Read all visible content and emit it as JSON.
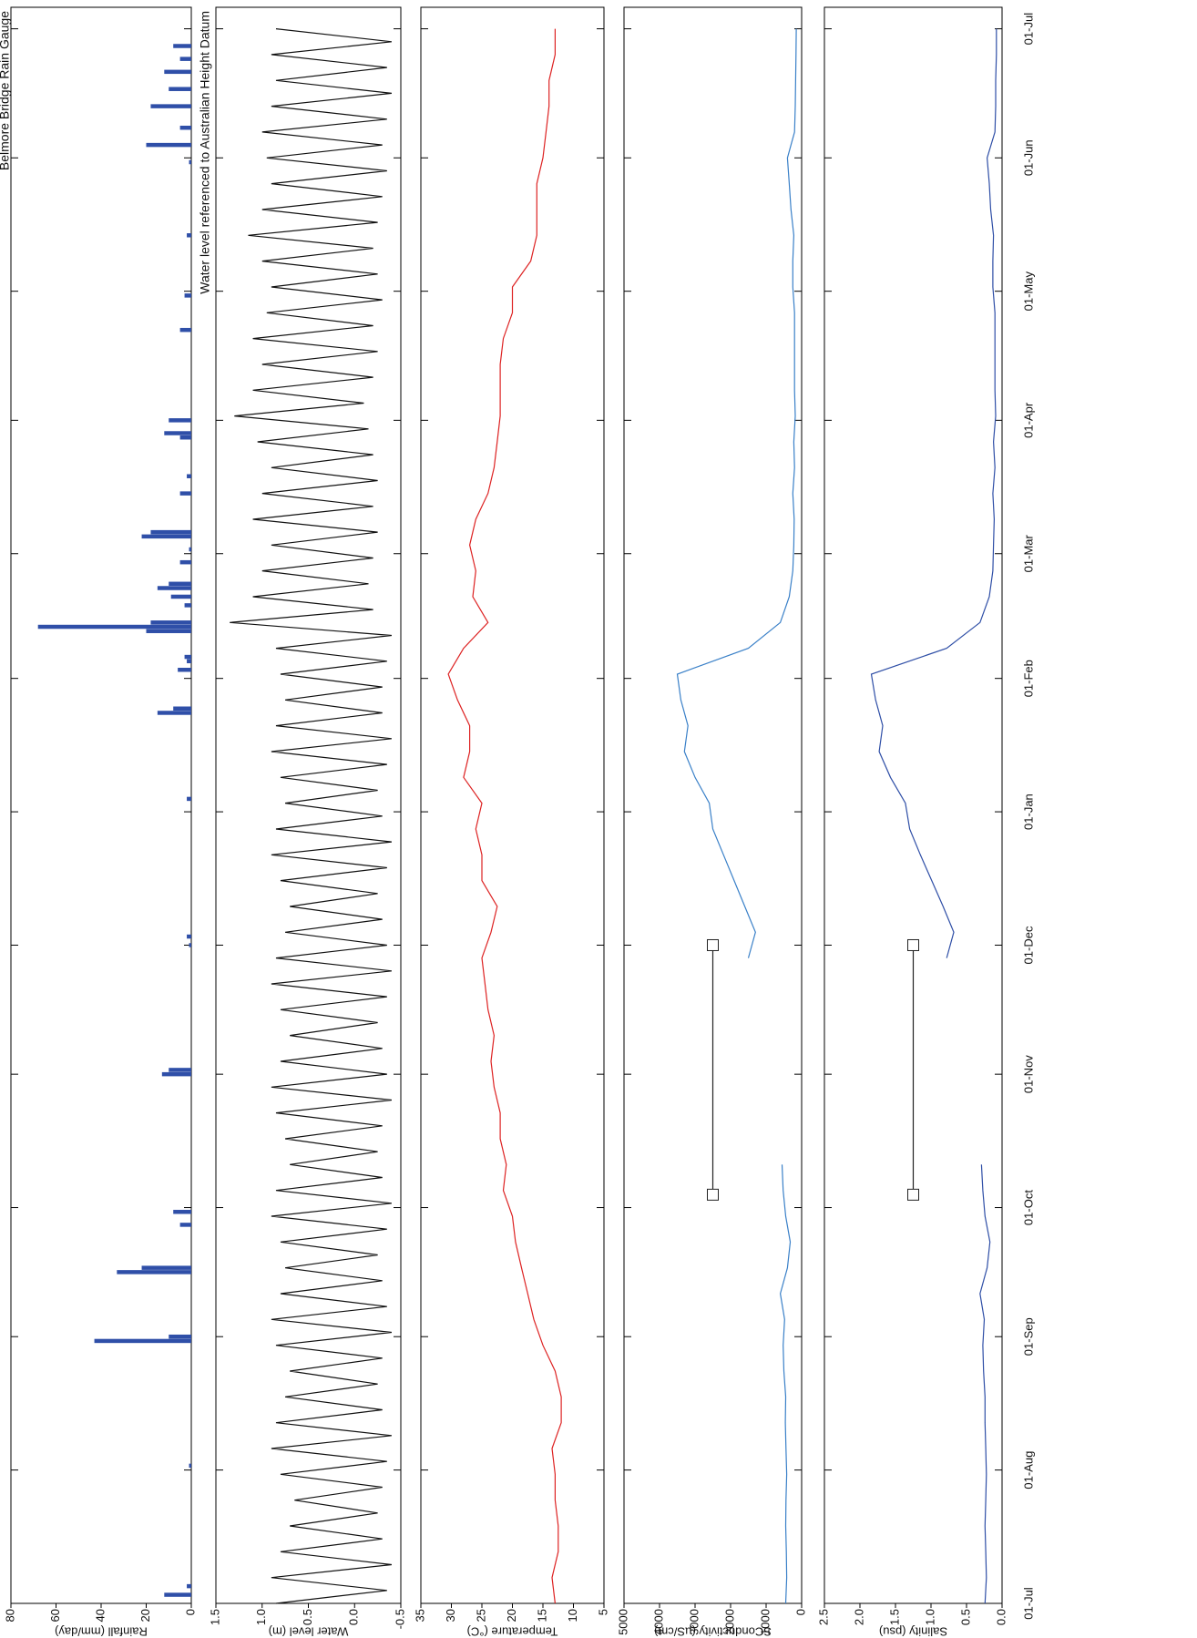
{
  "chart_data": [
    {
      "type": "bar",
      "ylabel": "Rainfall (mm/day)",
      "annotation": "Belmore Bridge Rain Gauge",
      "color": "#2f4fa8",
      "ylim": [
        0,
        80
      ],
      "yticks": [
        0,
        20,
        40,
        60,
        80
      ],
      "x": [
        2,
        4,
        32,
        61,
        62,
        77,
        78,
        88,
        91,
        123,
        124,
        153,
        155,
        187,
        207,
        208,
        217,
        219,
        220,
        226,
        227,
        228,
        232,
        234,
        236,
        237,
        242,
        245,
        248,
        249,
        258,
        262,
        271,
        272,
        275,
        296,
        304,
        318,
        335,
        339,
        343,
        348,
        352,
        356,
        359,
        362
      ],
      "values": [
        12,
        2,
        1,
        43,
        10,
        33,
        22,
        5,
        8,
        13,
        10,
        1,
        2,
        2,
        15,
        8,
        6,
        2,
        3,
        20,
        68,
        18,
        3,
        9,
        15,
        10,
        5,
        1,
        22,
        18,
        5,
        2,
        5,
        12,
        10,
        5,
        3,
        2,
        1,
        20,
        5,
        18,
        10,
        12,
        5,
        8
      ]
    },
    {
      "type": "line",
      "ylabel": "Water level (m)",
      "annotation": "Water level referenced to Australian Height Datum",
      "ylim": [
        -0.5,
        1.5
      ],
      "yticks": [
        {
          "value": -0.5,
          "label": "-0.5"
        },
        {
          "value": 0,
          "label": "0.0"
        },
        {
          "value": 0.5,
          "label": "0.5"
        },
        {
          "value": 1,
          "label": "1.0"
        },
        {
          "value": 1.5,
          "label": "1.5"
        }
      ],
      "x": [
        0,
        3,
        6,
        9,
        12,
        15,
        18,
        21,
        24,
        27,
        30,
        33,
        36,
        39,
        42,
        45,
        48,
        51,
        54,
        57,
        60,
        63,
        66,
        69,
        72,
        75,
        78,
        81,
        84,
        87,
        90,
        93,
        96,
        99,
        102,
        105,
        108,
        111,
        114,
        117,
        120,
        123,
        126,
        129,
        132,
        135,
        138,
        141,
        144,
        147,
        150,
        153,
        156,
        159,
        162,
        165,
        168,
        171,
        174,
        177,
        180,
        183,
        186,
        189,
        192,
        195,
        198,
        201,
        204,
        207,
        210,
        213,
        216,
        219,
        222,
        225,
        228,
        231,
        234,
        237,
        240,
        243,
        246,
        249,
        252,
        255,
        258,
        261,
        264,
        267,
        270,
        273,
        276,
        279,
        282,
        285,
        288,
        291,
        294,
        297,
        300,
        303,
        306,
        309,
        312,
        315,
        318,
        321,
        324,
        327,
        330,
        333,
        336,
        339,
        342,
        345,
        348,
        351,
        354,
        357,
        360,
        363,
        366
      ],
      "series": [
        {
          "color": "#111111",
          "values": [
            0.85,
            -0.35,
            0.9,
            -0.4,
            0.8,
            -0.3,
            0.7,
            -0.25,
            0.65,
            -0.3,
            0.8,
            -0.35,
            0.9,
            -0.4,
            0.85,
            -0.3,
            0.75,
            -0.25,
            0.7,
            -0.3,
            0.85,
            -0.4,
            0.9,
            -0.35,
            0.8,
            -0.3,
            0.75,
            -0.25,
            0.8,
            -0.35,
            0.9,
            -0.4,
            0.85,
            -0.3,
            0.7,
            -0.25,
            0.75,
            -0.3,
            0.85,
            -0.4,
            0.9,
            -0.35,
            0.8,
            -0.3,
            0.7,
            -0.25,
            0.8,
            -0.35,
            0.9,
            -0.4,
            0.85,
            -0.35,
            0.75,
            -0.3,
            0.7,
            -0.25,
            0.8,
            -0.35,
            0.9,
            -0.4,
            0.85,
            -0.3,
            0.75,
            -0.25,
            0.8,
            -0.35,
            0.9,
            -0.4,
            0.85,
            -0.3,
            0.75,
            -0.3,
            0.8,
            -0.35,
            0.85,
            -0.4,
            1.35,
            -0.2,
            1.1,
            -0.15,
            1.0,
            -0.2,
            0.9,
            -0.25,
            1.1,
            -0.2,
            1.0,
            -0.25,
            0.9,
            -0.2,
            1.05,
            -0.15,
            1.3,
            -0.1,
            1.1,
            -0.2,
            1.0,
            -0.25,
            1.1,
            -0.2,
            0.95,
            -0.3,
            0.9,
            -0.25,
            1.0,
            -0.2,
            1.15,
            -0.25,
            1.0,
            -0.3,
            0.9,
            -0.35,
            0.95,
            -0.3,
            1.0,
            -0.35,
            0.9,
            -0.4,
            0.85,
            -0.35,
            0.9,
            -0.4,
            0.85
          ]
        }
      ]
    },
    {
      "type": "line",
      "ylabel": "Temperature (°C)",
      "ylim": [
        5,
        35
      ],
      "yticks": [
        5,
        10,
        15,
        20,
        25,
        30,
        35
      ],
      "x": [
        0,
        6,
        12,
        18,
        24,
        30,
        36,
        42,
        48,
        54,
        60,
        66,
        72,
        78,
        84,
        90,
        96,
        102,
        108,
        114,
        120,
        126,
        132,
        138,
        144,
        150,
        156,
        162,
        168,
        174,
        180,
        186,
        192,
        198,
        204,
        210,
        216,
        222,
        228,
        234,
        240,
        246,
        252,
        258,
        264,
        270,
        276,
        282,
        288,
        294,
        300,
        306,
        312,
        318,
        324,
        330,
        336,
        342,
        348,
        354,
        360,
        366
      ],
      "series": [
        {
          "color": "#dd2222",
          "values": [
            13,
            13.5,
            12.5,
            12.5,
            13,
            13,
            13.5,
            12,
            12,
            13,
            15,
            16.5,
            17.5,
            18.5,
            19.5,
            20,
            21.5,
            21,
            22,
            22,
            23,
            23.5,
            23,
            24,
            24.5,
            25,
            23.5,
            22.5,
            25,
            25,
            26,
            25,
            28,
            27,
            27,
            29,
            30.5,
            28,
            24,
            26.5,
            26,
            27,
            26,
            24,
            23,
            22.5,
            22,
            22,
            22,
            21.5,
            20,
            20,
            17,
            16,
            16,
            16,
            15,
            14.5,
            14,
            14,
            13,
            13
          ]
        }
      ]
    },
    {
      "type": "line",
      "ylabel": "SConductivity (µS/cm)",
      "ylim": [
        0,
        5000
      ],
      "yticks": [
        0,
        1000,
        2000,
        3000,
        4000,
        5000
      ],
      "x": [
        0,
        6,
        12,
        18,
        24,
        30,
        36,
        42,
        48,
        54,
        60,
        66,
        72,
        78,
        84,
        90,
        96,
        102,
        108,
        114,
        120,
        126,
        132,
        138,
        144,
        150,
        156,
        162,
        168,
        174,
        180,
        186,
        192,
        198,
        204,
        210,
        216,
        222,
        228,
        234,
        240,
        246,
        252,
        258,
        264,
        270,
        276,
        282,
        288,
        294,
        300,
        306,
        312,
        318,
        324,
        330,
        336,
        342,
        348,
        354,
        360,
        366
      ],
      "series": [
        {
          "color": "#3a80c8",
          "values": [
            450,
            420,
            430,
            450,
            440,
            420,
            440,
            460,
            450,
            500,
            520,
            480,
            600,
            400,
            320,
            450,
            520,
            550,
            null,
            null,
            null,
            null,
            null,
            null,
            null,
            1500,
            1300,
            1600,
            1900,
            2200,
            2500,
            2600,
            3000,
            3300,
            3200,
            3400,
            3500,
            1500,
            600,
            350,
            250,
            220,
            210,
            250,
            200,
            220,
            180,
            200,
            200,
            200,
            200,
            250,
            250,
            220,
            300,
            350,
            400,
            200,
            180,
            170,
            160,
            150
          ]
        },
        {
          "color": "#222222",
          "markers": true,
          "x": [
            95,
            153
          ],
          "values": [
            2500,
            2500
          ]
        }
      ]
    },
    {
      "type": "line",
      "ylabel": "Salinity (psu)",
      "ylim": [
        0,
        2.5
      ],
      "yticks": [
        {
          "value": 0,
          "label": "0.0"
        },
        {
          "value": 0.5,
          "label": "0.5"
        },
        {
          "value": 1,
          "label": "1.0"
        },
        {
          "value": 1.5,
          "label": "1.5"
        },
        {
          "value": 2,
          "label": "2.0"
        },
        {
          "value": 2.5,
          "label": "2.5"
        }
      ],
      "xlim": [
        0,
        371
      ],
      "xticks": [
        {
          "value": 0,
          "label": "01-Jul"
        },
        {
          "value": 31,
          "label": "01-Aug"
        },
        {
          "value": 62,
          "label": "01-Sep"
        },
        {
          "value": 92,
          "label": "01-Oct"
        },
        {
          "value": 123,
          "label": "01-Nov"
        },
        {
          "value": 153,
          "label": "01-Dec"
        },
        {
          "value": 184,
          "label": "01-Jan"
        },
        {
          "value": 215,
          "label": "01-Feb"
        },
        {
          "value": 244,
          "label": "01-Mar"
        },
        {
          "value": 275,
          "label": "01-Apr"
        },
        {
          "value": 305,
          "label": "01-May"
        },
        {
          "value": 336,
          "label": "01-Jun"
        },
        {
          "value": 366,
          "label": "01-Jul"
        }
      ],
      "x": [
        0,
        6,
        12,
        18,
        24,
        30,
        36,
        42,
        48,
        54,
        60,
        66,
        72,
        78,
        84,
        90,
        96,
        102,
        108,
        114,
        120,
        126,
        132,
        138,
        144,
        150,
        156,
        162,
        168,
        174,
        180,
        186,
        192,
        198,
        204,
        210,
        216,
        222,
        228,
        234,
        240,
        246,
        252,
        258,
        264,
        270,
        276,
        282,
        288,
        294,
        300,
        306,
        312,
        318,
        324,
        330,
        336,
        342,
        348,
        354,
        360,
        366
      ],
      "series": [
        {
          "color": "#2e4ea6",
          "values": [
            0.24,
            0.22,
            0.23,
            0.24,
            0.23,
            0.22,
            0.23,
            0.24,
            0.24,
            0.26,
            0.27,
            0.25,
            0.31,
            0.21,
            0.17,
            0.24,
            0.27,
            0.29,
            null,
            null,
            null,
            null,
            null,
            null,
            null,
            0.78,
            0.68,
            0.83,
            0.99,
            1.15,
            1.3,
            1.36,
            1.57,
            1.73,
            1.68,
            1.78,
            1.84,
            0.78,
            0.31,
            0.18,
            0.13,
            0.12,
            0.11,
            0.13,
            0.1,
            0.12,
            0.09,
            0.1,
            0.1,
            0.1,
            0.1,
            0.13,
            0.13,
            0.12,
            0.16,
            0.18,
            0.21,
            0.1,
            0.09,
            0.09,
            0.08,
            0.08
          ]
        },
        {
          "color": "#222222",
          "markers": true,
          "x": [
            95,
            153
          ],
          "values": [
            1.25,
            1.25
          ]
        }
      ]
    }
  ]
}
